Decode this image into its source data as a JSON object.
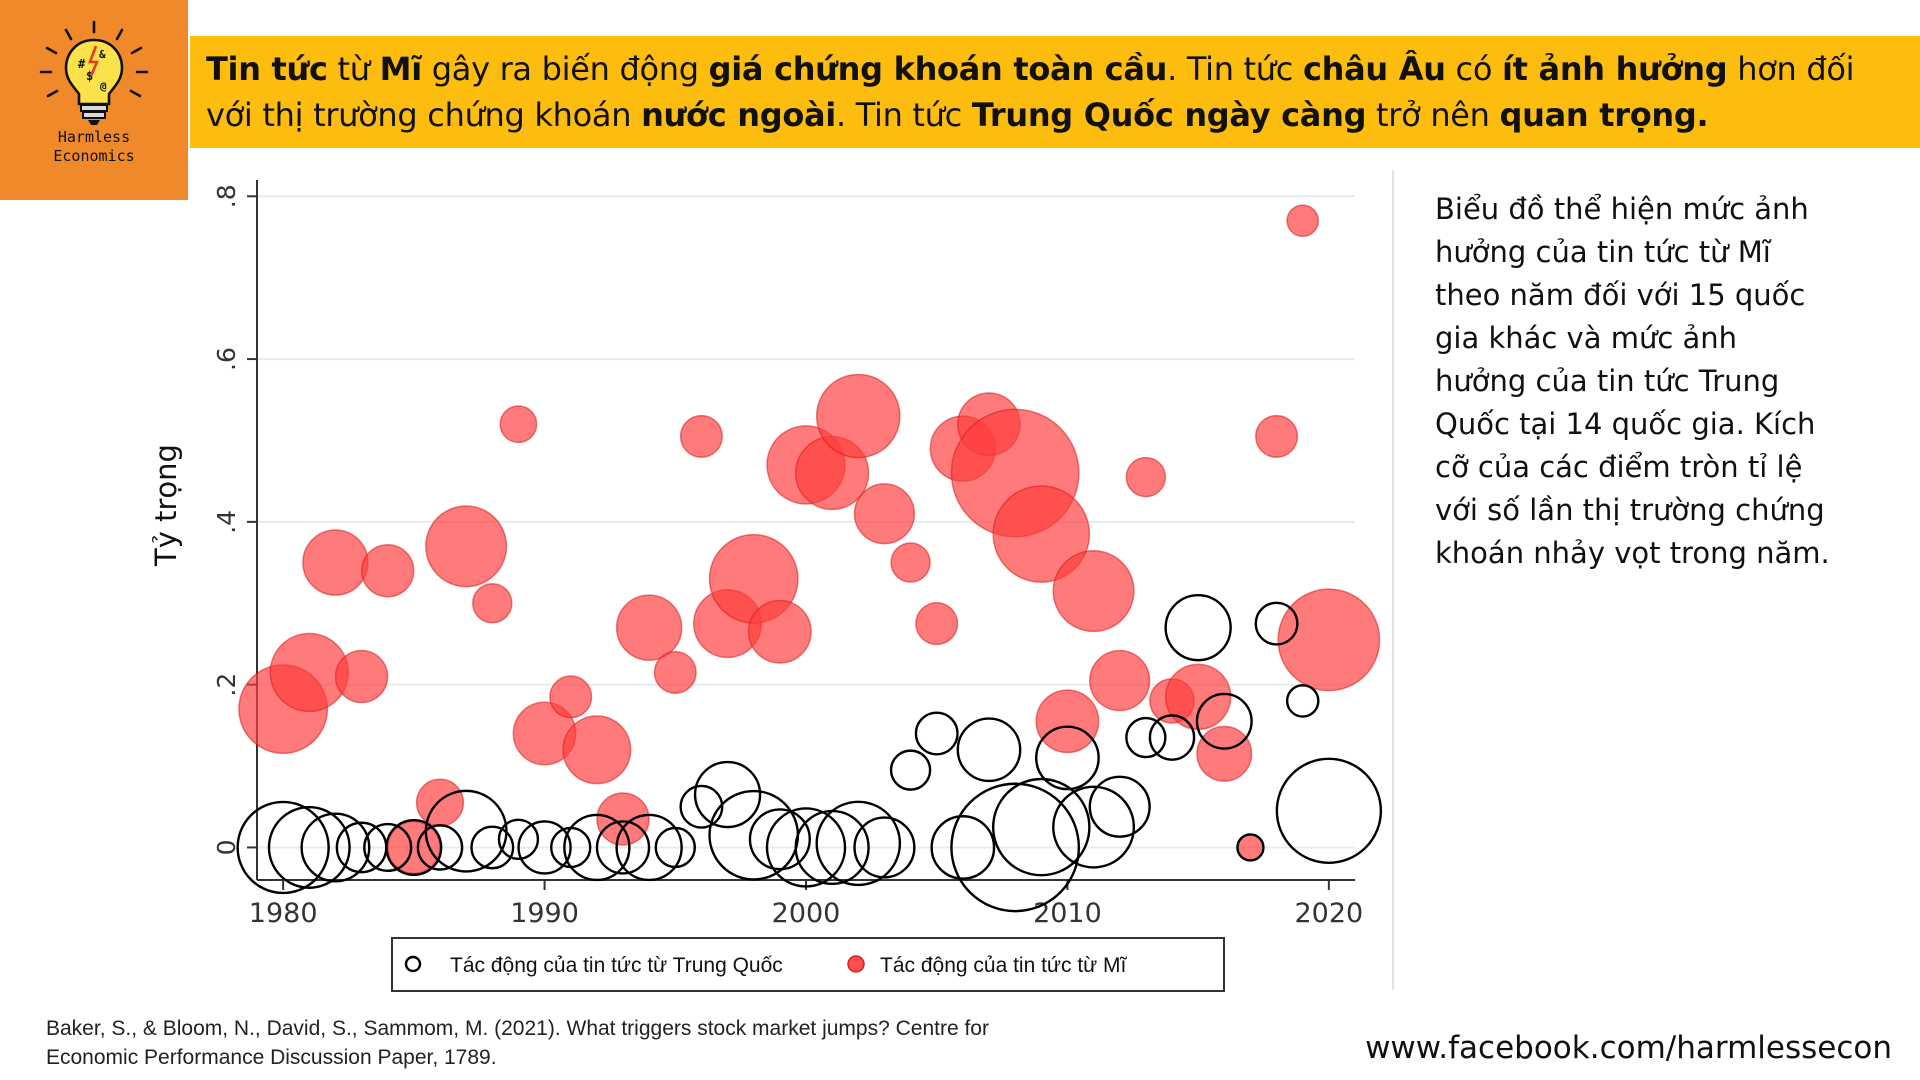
{
  "logo": {
    "line1": "Harmless",
    "line2": "Economics",
    "icon": "lightbulb-icon"
  },
  "headline": [
    {
      "t": "Tin tức",
      "b": true
    },
    {
      "t": " từ ",
      "b": false
    },
    {
      "t": "Mĩ",
      "b": true
    },
    {
      "t": " gây ra biến động ",
      "b": false
    },
    {
      "t": "giá chứng khoán toàn cầu",
      "b": true
    },
    {
      "t": ". Tin tức ",
      "b": false
    },
    {
      "t": "châu Âu",
      "b": true
    },
    {
      "t": " có ",
      "b": false
    },
    {
      "t": "ít ảnh hưởng",
      "b": true
    },
    {
      "t": " hơn đối với thị trường chứng khoán ",
      "b": false
    },
    {
      "t": "nước ngoài",
      "b": true
    },
    {
      "t": ". Tin tức ",
      "b": false
    },
    {
      "t": "Trung Quốc ngày càng",
      "b": true
    },
    {
      "t": " trở nên ",
      "b": false
    },
    {
      "t": "quan trọng.",
      "b": true
    }
  ],
  "description": "Biểu đồ thể hiện mức ảnh hưởng của tin tức từ Mĩ theo năm đối với 15 quốc gia khác và mức ảnh hưởng của tin tức Trung Quốc tại 14 quốc gia. Kích cỡ của các điểm tròn tỉ lệ với số lần thị trường chứng khoán nhảy vọt trong năm.",
  "citation_line1": "Baker, S., & Bloom, N., David, S., Sammom, M. (2021). What triggers stock market jumps? Centre for",
  "citation_line2": "Economic Performance Discussion Paper, 1789.",
  "website": "www.facebook.com/harmlessecon",
  "chart_data": {
    "type": "scatter",
    "ylabel": "Tỷ trọng",
    "xlabel": "",
    "xlim": [
      1979,
      2021
    ],
    "ylim": [
      -0.04,
      0.82
    ],
    "xticks": [
      1980,
      1990,
      2000,
      2010,
      2020
    ],
    "xtick_labels": [
      "1980",
      "1990",
      "2000",
      "2010",
      "2020"
    ],
    "yticks": [
      0,
      0.2,
      0.4,
      0.6,
      0.8
    ],
    "ytick_labels": [
      "0",
      ".2",
      ".4",
      ".6",
      ".8"
    ],
    "grid": true,
    "legend_position": "bottom",
    "series": [
      {
        "name": "Tác động của tin tức từ Mĩ",
        "color": "#ff4d4d",
        "marker": "filled-circle",
        "points": [
          {
            "x": 1980,
            "y": 0.17,
            "s": 1.7
          },
          {
            "x": 1981,
            "y": 0.215,
            "s": 1.5
          },
          {
            "x": 1982,
            "y": 0.35,
            "s": 1.25
          },
          {
            "x": 1983,
            "y": 0.21,
            "s": 1.0
          },
          {
            "x": 1984,
            "y": 0.34,
            "s": 1.0
          },
          {
            "x": 1985,
            "y": 0.0,
            "s": 1.0
          },
          {
            "x": 1986,
            "y": 0.055,
            "s": 0.9
          },
          {
            "x": 1987,
            "y": 0.37,
            "s": 1.55
          },
          {
            "x": 1988,
            "y": 0.3,
            "s": 0.75
          },
          {
            "x": 1989,
            "y": 0.52,
            "s": 0.7
          },
          {
            "x": 1990,
            "y": 0.14,
            "s": 1.2
          },
          {
            "x": 1991,
            "y": 0.185,
            "s": 0.8
          },
          {
            "x": 1992,
            "y": 0.12,
            "s": 1.3
          },
          {
            "x": 1993,
            "y": 0.035,
            "s": 1.0
          },
          {
            "x": 1994,
            "y": 0.27,
            "s": 1.25
          },
          {
            "x": 1995,
            "y": 0.215,
            "s": 0.8
          },
          {
            "x": 1996,
            "y": 0.505,
            "s": 0.8
          },
          {
            "x": 1997,
            "y": 0.275,
            "s": 1.3
          },
          {
            "x": 1998,
            "y": 0.33,
            "s": 1.7
          },
          {
            "x": 1999,
            "y": 0.265,
            "s": 1.2
          },
          {
            "x": 2000,
            "y": 0.47,
            "s": 1.5
          },
          {
            "x": 2001,
            "y": 0.46,
            "s": 1.4
          },
          {
            "x": 2002,
            "y": 0.53,
            "s": 1.6
          },
          {
            "x": 2003,
            "y": 0.41,
            "s": 1.15
          },
          {
            "x": 2004,
            "y": 0.35,
            "s": 0.75
          },
          {
            "x": 2005,
            "y": 0.275,
            "s": 0.8
          },
          {
            "x": 2006,
            "y": 0.49,
            "s": 1.25
          },
          {
            "x": 2007,
            "y": 0.52,
            "s": 1.2
          },
          {
            "x": 2008,
            "y": 0.46,
            "s": 2.45
          },
          {
            "x": 2009,
            "y": 0.385,
            "s": 1.85
          },
          {
            "x": 2010,
            "y": 0.155,
            "s": 1.2
          },
          {
            "x": 2011,
            "y": 0.315,
            "s": 1.55
          },
          {
            "x": 2012,
            "y": 0.205,
            "s": 1.15
          },
          {
            "x": 2013,
            "y": 0.455,
            "s": 0.75
          },
          {
            "x": 2014,
            "y": 0.18,
            "s": 0.85
          },
          {
            "x": 2015,
            "y": 0.185,
            "s": 1.25
          },
          {
            "x": 2016,
            "y": 0.115,
            "s": 1.05
          },
          {
            "x": 2017,
            "y": 0.0,
            "s": 0.5
          },
          {
            "x": 2018,
            "y": 0.505,
            "s": 0.8
          },
          {
            "x": 2019,
            "y": 0.77,
            "s": 0.6
          },
          {
            "x": 2020,
            "y": 0.255,
            "s": 1.95
          }
        ]
      },
      {
        "name": "Tác động của tin tức từ Trung Quốc",
        "color": "#000000",
        "marker": "hollow-circle",
        "points": [
          {
            "x": 1980,
            "y": 0.0,
            "s": 1.75
          },
          {
            "x": 1981,
            "y": 0.0,
            "s": 1.55
          },
          {
            "x": 1982,
            "y": 0.0,
            "s": 1.3
          },
          {
            "x": 1983,
            "y": 0.0,
            "s": 0.95
          },
          {
            "x": 1984,
            "y": 0.0,
            "s": 0.9
          },
          {
            "x": 1985,
            "y": 0.0,
            "s": 1.05
          },
          {
            "x": 1986,
            "y": 0.0,
            "s": 0.85
          },
          {
            "x": 1987,
            "y": 0.02,
            "s": 1.55
          },
          {
            "x": 1988,
            "y": 0.0,
            "s": 0.8
          },
          {
            "x": 1989,
            "y": 0.01,
            "s": 0.75
          },
          {
            "x": 1990,
            "y": 0.0,
            "s": 1.0
          },
          {
            "x": 1991,
            "y": 0.0,
            "s": 0.75
          },
          {
            "x": 1992,
            "y": 0.0,
            "s": 1.25
          },
          {
            "x": 1993,
            "y": 0.0,
            "s": 1.0
          },
          {
            "x": 1994,
            "y": 0.0,
            "s": 1.25
          },
          {
            "x": 1995,
            "y": 0.0,
            "s": 0.75
          },
          {
            "x": 1996,
            "y": 0.05,
            "s": 0.8
          },
          {
            "x": 1997,
            "y": 0.065,
            "s": 1.25
          },
          {
            "x": 1998,
            "y": 0.015,
            "s": 1.7
          },
          {
            "x": 1999,
            "y": 0.01,
            "s": 1.15
          },
          {
            "x": 2000,
            "y": 0.0,
            "s": 1.5
          },
          {
            "x": 2001,
            "y": 0.0,
            "s": 1.4
          },
          {
            "x": 2002,
            "y": 0.005,
            "s": 1.6
          },
          {
            "x": 2003,
            "y": 0.0,
            "s": 1.15
          },
          {
            "x": 2004,
            "y": 0.095,
            "s": 0.75
          },
          {
            "x": 2005,
            "y": 0.14,
            "s": 0.8
          },
          {
            "x": 2006,
            "y": 0.0,
            "s": 1.2
          },
          {
            "x": 2007,
            "y": 0.12,
            "s": 1.2
          },
          {
            "x": 2008,
            "y": 0.0,
            "s": 2.45
          },
          {
            "x": 2009,
            "y": 0.025,
            "s": 1.85
          },
          {
            "x": 2010,
            "y": 0.11,
            "s": 1.2
          },
          {
            "x": 2011,
            "y": 0.025,
            "s": 1.55
          },
          {
            "x": 2012,
            "y": 0.05,
            "s": 1.15
          },
          {
            "x": 2013,
            "y": 0.135,
            "s": 0.75
          },
          {
            "x": 2014,
            "y": 0.135,
            "s": 0.85
          },
          {
            "x": 2015,
            "y": 0.27,
            "s": 1.25
          },
          {
            "x": 2016,
            "y": 0.155,
            "s": 1.05
          },
          {
            "x": 2017,
            "y": 0.0,
            "s": 0.5
          },
          {
            "x": 2018,
            "y": 0.275,
            "s": 0.8
          },
          {
            "x": 2019,
            "y": 0.18,
            "s": 0.6
          },
          {
            "x": 2020,
            "y": 0.045,
            "s": 2.0
          }
        ]
      }
    ]
  }
}
